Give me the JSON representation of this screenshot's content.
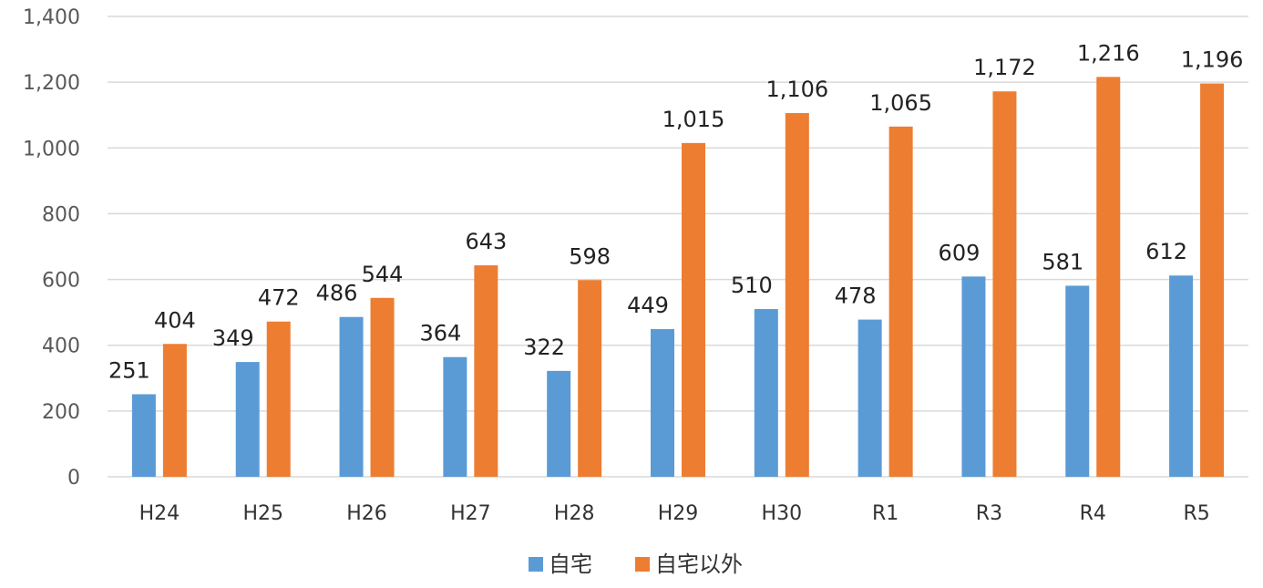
{
  "chart_data": {
    "type": "bar",
    "title": "",
    "xlabel": "",
    "ylabel": "",
    "categories": [
      "H24",
      "H25",
      "H26",
      "H27",
      "H28",
      "H29",
      "H30",
      "R1",
      "R3",
      "R4",
      "R5"
    ],
    "series": [
      {
        "name": "自宅",
        "color": "#5B9BD5",
        "values": [
          251,
          349,
          486,
          364,
          322,
          449,
          510,
          478,
          609,
          581,
          612
        ],
        "labels": [
          "251",
          "349",
          "486",
          "364",
          "322",
          "449",
          "510",
          "478",
          "609",
          "581",
          "612"
        ]
      },
      {
        "name": "自宅以外",
        "color": "#ED7D31",
        "values": [
          404,
          472,
          544,
          643,
          598,
          1015,
          1106,
          1065,
          1172,
          1216,
          1196
        ],
        "labels": [
          "404",
          "472",
          "544",
          "643",
          "598",
          "1,015",
          "1,106",
          "1,065",
          "1,172",
          "1,216",
          "1,196"
        ]
      }
    ],
    "ylim": [
      0,
      1400
    ],
    "yticks": [
      0,
      200,
      400,
      600,
      800,
      1000,
      1200,
      1400
    ],
    "ytick_labels": [
      "0",
      "200",
      "400",
      "600",
      "800",
      "1,000",
      "1,200",
      "1,400"
    ],
    "grid": "horizontal",
    "legend": "bottom-center",
    "gridline_color": "#D9D9D9"
  }
}
